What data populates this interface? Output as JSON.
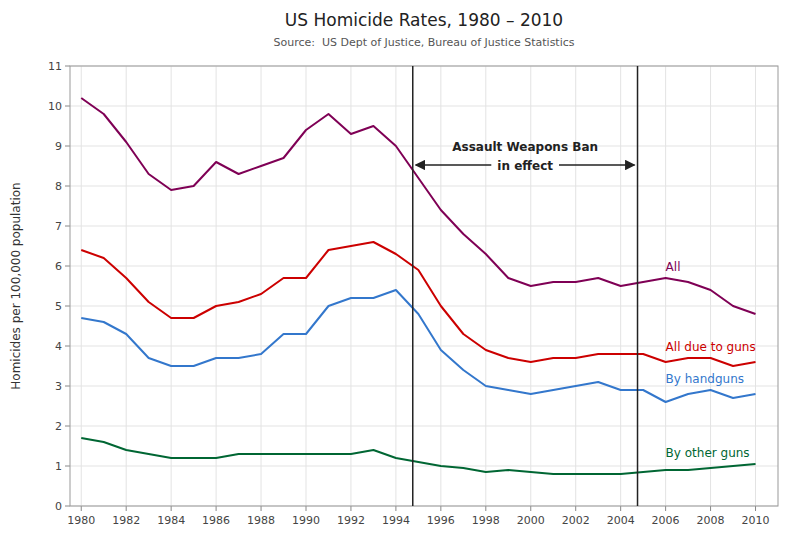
{
  "chart_data": {
    "type": "line",
    "title": "US Homicide Rates, 1980 – 2010",
    "subtitle": "Source:  US Dept of Justice, Bureau of Justice Statistics",
    "ylabel": "Homicides per 100,000 population",
    "x": [
      1980,
      1981,
      1982,
      1983,
      1984,
      1985,
      1986,
      1987,
      1988,
      1989,
      1990,
      1991,
      1992,
      1993,
      1994,
      1995,
      1996,
      1997,
      1998,
      1999,
      2000,
      2001,
      2002,
      2003,
      2004,
      2005,
      2006,
      2007,
      2008,
      2009,
      2010
    ],
    "series": [
      {
        "name": "All",
        "color": "#7f0055",
        "values": [
          10.2,
          9.8,
          9.1,
          8.3,
          7.9,
          8.0,
          8.6,
          8.3,
          8.5,
          8.7,
          9.4,
          9.8,
          9.3,
          9.5,
          9.0,
          8.2,
          7.4,
          6.8,
          6.3,
          5.7,
          5.5,
          5.6,
          5.6,
          5.7,
          5.5,
          5.6,
          5.7,
          5.6,
          5.4,
          5.0,
          4.8
        ]
      },
      {
        "name": "All due to guns",
        "color": "#cc0000",
        "values": [
          6.4,
          6.2,
          5.7,
          5.1,
          4.7,
          4.7,
          5.0,
          5.1,
          5.3,
          5.7,
          5.7,
          6.4,
          6.5,
          6.6,
          6.3,
          5.9,
          5.0,
          4.3,
          3.9,
          3.7,
          3.6,
          3.7,
          3.7,
          3.8,
          3.8,
          3.8,
          3.6,
          3.7,
          3.7,
          3.5,
          3.6
        ]
      },
      {
        "name": "By handguns",
        "color": "#3377cc",
        "values": [
          4.7,
          4.6,
          4.3,
          3.7,
          3.5,
          3.5,
          3.7,
          3.7,
          3.8,
          4.3,
          4.3,
          5.0,
          5.2,
          5.2,
          5.4,
          4.8,
          3.9,
          3.4,
          3.0,
          2.9,
          2.8,
          2.9,
          3.0,
          3.1,
          2.9,
          2.9,
          2.6,
          2.8,
          2.9,
          2.7,
          2.8
        ]
      },
      {
        "name": "By other guns",
        "color": "#006633",
        "values": [
          1.7,
          1.6,
          1.4,
          1.3,
          1.2,
          1.2,
          1.2,
          1.3,
          1.3,
          1.3,
          1.3,
          1.3,
          1.3,
          1.4,
          1.2,
          1.1,
          1.0,
          0.95,
          0.85,
          0.9,
          0.85,
          0.8,
          0.8,
          0.8,
          0.8,
          0.85,
          0.9,
          0.9,
          0.95,
          1.0,
          1.05
        ]
      }
    ],
    "vlines": [
      1994.75,
      2004.75
    ],
    "annotation": [
      "Assault Weapons Ban",
      "in effect"
    ],
    "xlim": [
      1979.5,
      2011.0
    ],
    "xticks": [
      1980,
      1982,
      1984,
      1986,
      1988,
      1990,
      1992,
      1994,
      1996,
      1998,
      2000,
      2002,
      2004,
      2006,
      2008,
      2010
    ],
    "ylim": [
      0,
      11
    ],
    "yticks": [
      0,
      1,
      2,
      3,
      4,
      5,
      6,
      7,
      8,
      9,
      10,
      11
    ],
    "grid": true
  }
}
